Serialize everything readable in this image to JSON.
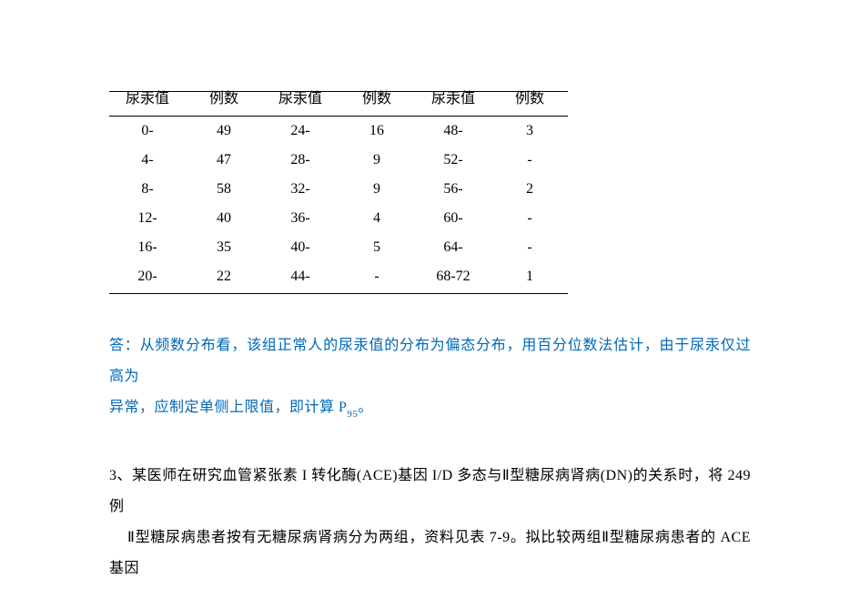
{
  "table": {
    "headers": [
      "尿汞值",
      "例数",
      "尿汞值",
      "例数",
      "尿汞值",
      "例数"
    ],
    "rows": [
      [
        "0-",
        "49",
        "24-",
        "16",
        "48-",
        "3"
      ],
      [
        "4-",
        "47",
        "28-",
        "9",
        "52-",
        "-"
      ],
      [
        "8-",
        "58",
        "32-",
        "9",
        "56-",
        "2"
      ],
      [
        "12-",
        "40",
        "36-",
        "4",
        "60-",
        "-"
      ],
      [
        "16-",
        "35",
        "40-",
        "5",
        "64-",
        "-"
      ],
      [
        "20-",
        "22",
        "44-",
        "-",
        "68-72",
        "1"
      ]
    ]
  },
  "answer": {
    "line1": "答：从频数分布看，该组正常人的尿汞值的分布为偏态分布，用百分位数法估计，由于尿汞仅过高为",
    "line2_pre": "异常，应制定单侧上限值，即计算 P",
    "line2_sub": "95",
    "line2_post": "。"
  },
  "question": {
    "num": "3、",
    "line1": "某医师在研究血管紧张素 I 转化酶(ACE)基因 I/D 多态与Ⅱ型糖尿病肾病(DN)的关系时，将 249 例",
    "line2": "Ⅱ型糖尿病患者按有无糖尿病肾病分为两组，资料见表 7-9。拟比较两组Ⅱ型糖尿病患者的 ACE 基因"
  },
  "colors": {
    "answer": "#0068b7",
    "text": "#000000",
    "bg": "#ffffff"
  }
}
